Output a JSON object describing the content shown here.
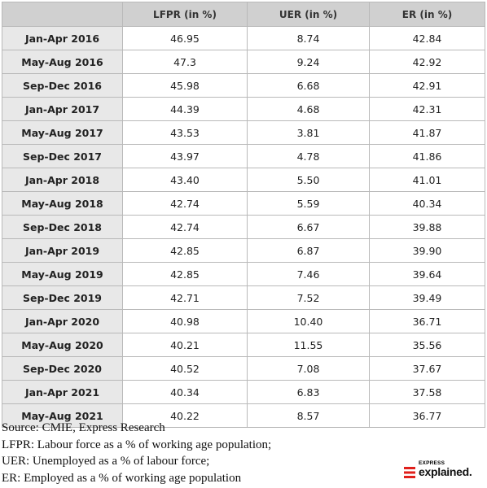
{
  "chart_data": {
    "type": "table",
    "columns": [
      "",
      "LFPR (in %)",
      "UER (in %)",
      "ER (in %)"
    ],
    "rows": [
      {
        "period": "Jan-Apr 2016",
        "lfpr": "46.95",
        "uer": "8.74",
        "er": "42.84"
      },
      {
        "period": "May-Aug 2016",
        "lfpr": "47.3",
        "uer": "9.24",
        "er": "42.92"
      },
      {
        "period": "Sep-Dec 2016",
        "lfpr": "45.98",
        "uer": "6.68",
        "er": "42.91"
      },
      {
        "period": "Jan-Apr 2017",
        "lfpr": "44.39",
        "uer": "4.68",
        "er": "42.31"
      },
      {
        "period": "May-Aug 2017",
        "lfpr": "43.53",
        "uer": "3.81",
        "er": "41.87"
      },
      {
        "period": "Sep-Dec 2017",
        "lfpr": "43.97",
        "uer": "4.78",
        "er": "41.86"
      },
      {
        "period": "Jan-Apr 2018",
        "lfpr": "43.40",
        "uer": "5.50",
        "er": "41.01"
      },
      {
        "period": "May-Aug 2018",
        "lfpr": "42.74",
        "uer": "5.59",
        "er": "40.34"
      },
      {
        "period": "Sep-Dec 2018",
        "lfpr": "42.74",
        "uer": "6.67",
        "er": "39.88"
      },
      {
        "period": "Jan-Apr 2019",
        "lfpr": "42.85",
        "uer": "6.87",
        "er": "39.90"
      },
      {
        "period": "May-Aug 2019",
        "lfpr": "42.85",
        "uer": "7.46",
        "er": "39.64"
      },
      {
        "period": "Sep-Dec 2019",
        "lfpr": "42.71",
        "uer": "7.52",
        "er": "39.49"
      },
      {
        "period": "Jan-Apr 2020",
        "lfpr": "40.98",
        "uer": "10.40",
        "er": "36.71"
      },
      {
        "period": "May-Aug 2020",
        "lfpr": "40.21",
        "uer": "11.55",
        "er": "35.56"
      },
      {
        "period": "Sep-Dec 2020",
        "lfpr": "40.52",
        "uer": "7.08",
        "er": "37.67"
      },
      {
        "period": "Jan-Apr 2021",
        "lfpr": "40.34",
        "uer": "6.83",
        "er": "37.58"
      },
      {
        "period": "May-Aug 2021",
        "lfpr": "40.22",
        "uer": "8.57",
        "er": "36.77"
      }
    ]
  },
  "notes": [
    "Source: CMIE, Express Research",
    "LFPR: Labour force as a % of working age population;",
    "UER: Unemployed as a % of labour force;",
    "ER: Employed as a % of working age population"
  ],
  "logo": {
    "small": "EXPRESS",
    "big": "explained."
  },
  "colors": {
    "header_bg": "#d0d0d0",
    "period_bg": "#e8e8e8",
    "logo_accent": "#e0201b"
  }
}
